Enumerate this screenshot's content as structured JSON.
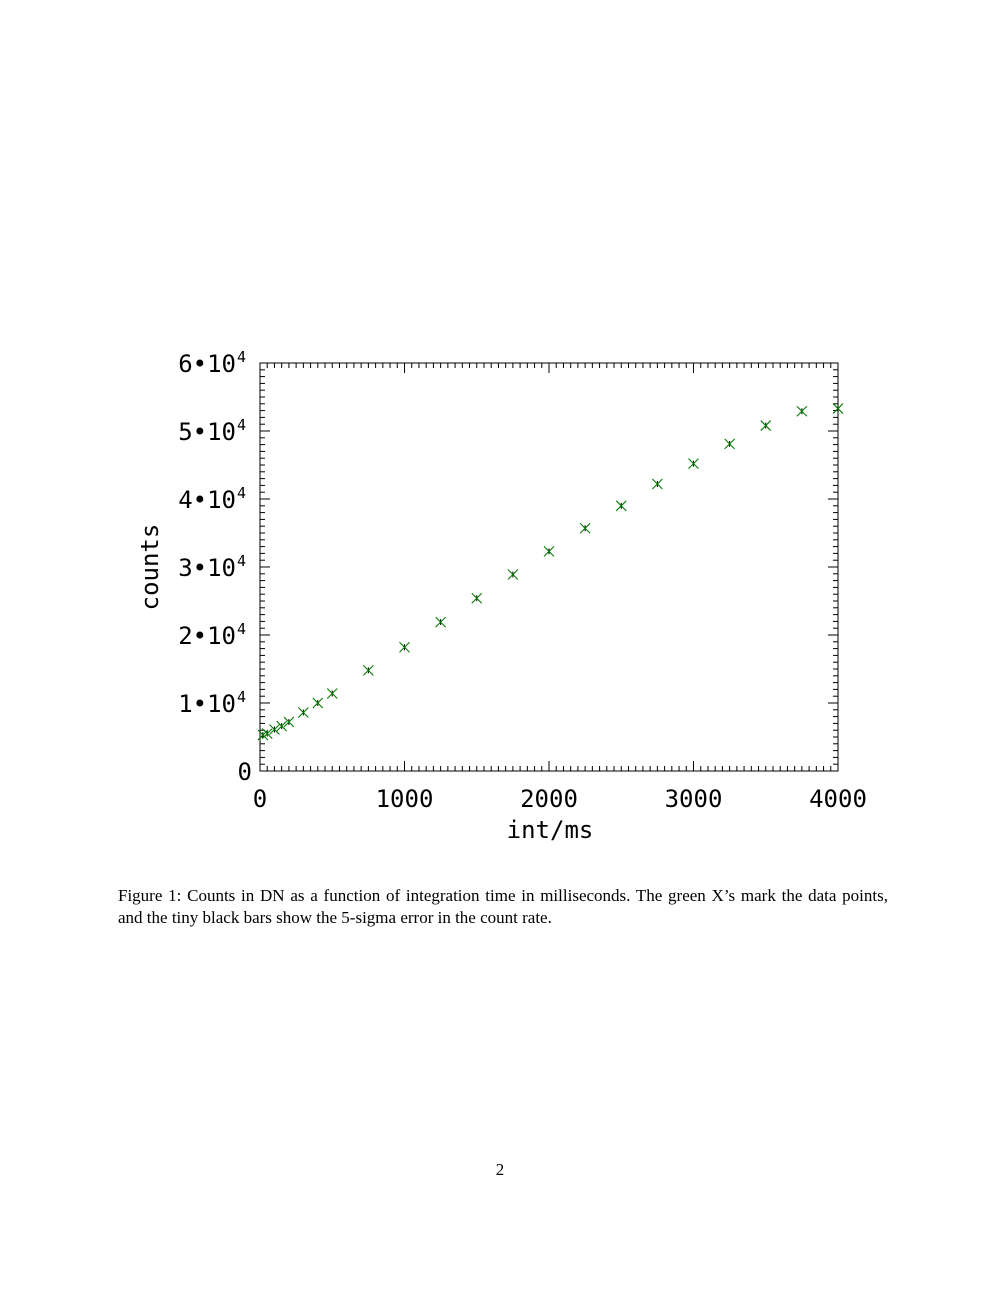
{
  "chart_data": {
    "type": "scatter",
    "title": "",
    "xlabel": "int/ms",
    "ylabel": "counts",
    "xlim": [
      0,
      4000
    ],
    "ylim": [
      0,
      60000
    ],
    "x_ticks": [
      0,
      1000,
      2000,
      3000,
      4000
    ],
    "x_tick_labels": [
      "0",
      "1000",
      "2000",
      "3000",
      "4000"
    ],
    "y_ticks": [
      0,
      10000,
      20000,
      30000,
      40000,
      50000,
      60000
    ],
    "y_tick_labels": [
      {
        "mantissa": "0",
        "exponent": ""
      },
      {
        "mantissa": "1•10",
        "exponent": "4"
      },
      {
        "mantissa": "2•10",
        "exponent": "4"
      },
      {
        "mantissa": "3•10",
        "exponent": "4"
      },
      {
        "mantissa": "4•10",
        "exponent": "4"
      },
      {
        "mantissa": "5•10",
        "exponent": "4"
      },
      {
        "mantissa": "6•10",
        "exponent": "4"
      }
    ],
    "grid": false,
    "marker": "x",
    "marker_color": "#007a00",
    "error_bar_color": "#000000",
    "x": [
      20,
      50,
      100,
      150,
      200,
      300,
      400,
      500,
      750,
      1000,
      1250,
      1500,
      1750,
      2000,
      2250,
      2500,
      2750,
      3000,
      3250,
      3500,
      3750,
      4000
    ],
    "y": [
      5300,
      5500,
      6100,
      6600,
      7200,
      8600,
      10000,
      11400,
      14800,
      18200,
      21900,
      25400,
      28900,
      32300,
      35700,
      39000,
      42200,
      45200,
      48100,
      50800,
      52900,
      53300
    ]
  },
  "caption": "Figure 1: Counts in DN as a function of integration time in milliseconds. The green X’s mark the data points, and the tiny black bars show the 5-sigma error in the count rate.",
  "page_number": "2"
}
